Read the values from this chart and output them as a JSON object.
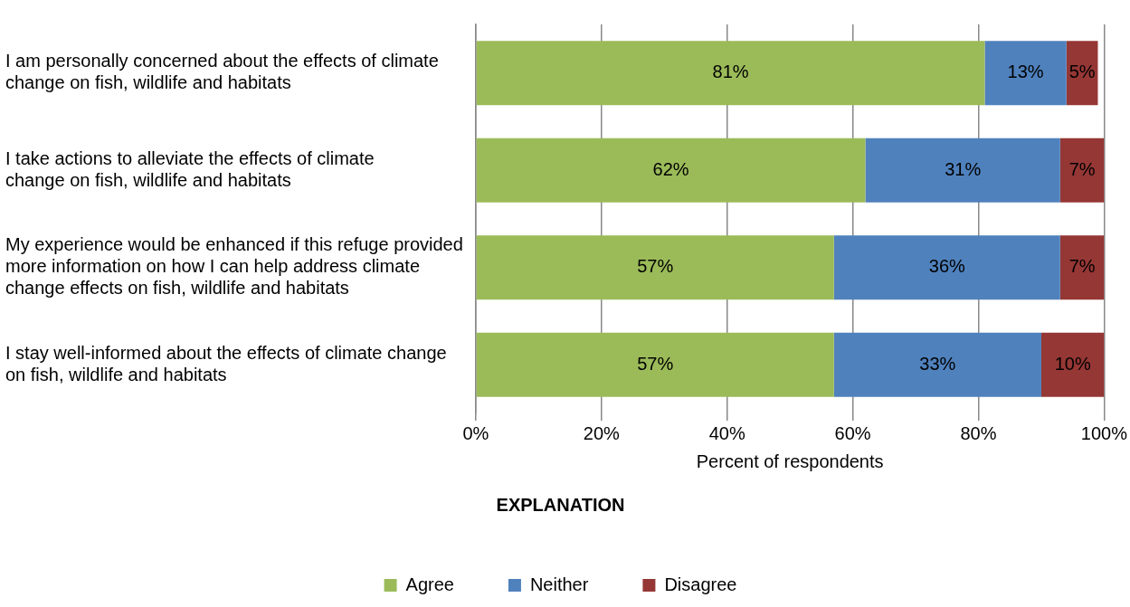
{
  "chart_data": {
    "type": "bar",
    "orientation": "horizontal",
    "stacked": true,
    "categories": [
      "I am personally concerned about the effects of climate change on fish, wildlife and habitats",
      "I take actions to alleviate the effects of climate change on fish, wildlife and habitats",
      "My experience would be enhanced if this refuge provided more information on how I can help address climate change effects on fish, wildlife and habitats",
      "I stay well-informed about the effects of climate change on fish, wildlife and habitats"
    ],
    "series": [
      {
        "name": "Agree",
        "color": "#9bbb59",
        "values": [
          81,
          62,
          57,
          57
        ],
        "value_labels": [
          "81%",
          "62%",
          "57%",
          "57%"
        ]
      },
      {
        "name": "Neither",
        "color": "#4f81bd",
        "values": [
          13,
          31,
          36,
          33
        ],
        "value_labels": [
          "13%",
          "31%",
          "36%",
          "33%"
        ]
      },
      {
        "name": "Disagree",
        "color": "#953735",
        "values": [
          5,
          7,
          7,
          10
        ],
        "value_labels": [
          "5%",
          "7%",
          "7%",
          "10%"
        ]
      }
    ],
    "xlim": [
      0,
      100
    ],
    "xticks": [
      {
        "value": 0,
        "label": "0%"
      },
      {
        "value": 20,
        "label": "20%"
      },
      {
        "value": 40,
        "label": "40%"
      },
      {
        "value": 60,
        "label": "60%"
      },
      {
        "value": 80,
        "label": "80%"
      },
      {
        "value": 100,
        "label": "100%"
      }
    ],
    "xlabel": "Percent of respondents",
    "legend_title": "EXPLANATION",
    "legend": "bottom",
    "grid": "x"
  }
}
